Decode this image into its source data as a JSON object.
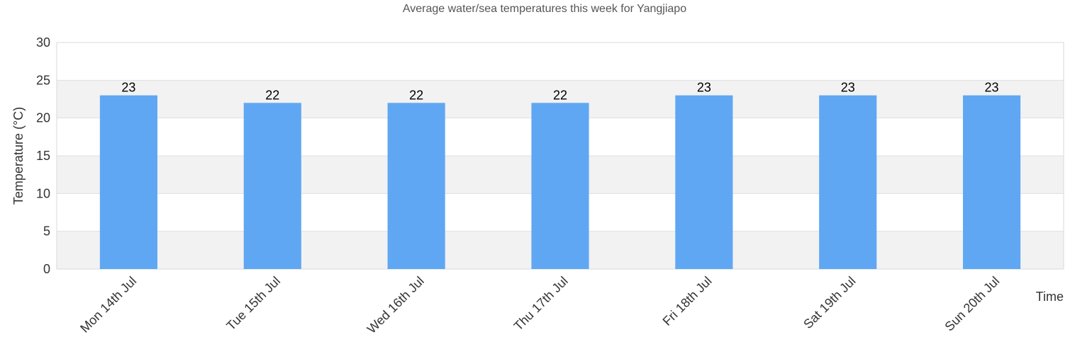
{
  "chart_data": {
    "type": "bar",
    "title": "Average water/sea temperatures this week for Yangjiapo",
    "xlabel": "Time",
    "ylabel": "Temperature (°C)",
    "categories": [
      "Mon 14th Jul",
      "Tue 15th Jul",
      "Wed 16th Jul",
      "Thu 17th Jul",
      "Fri 18th Jul",
      "Sat 19th Jul",
      "Sun 20th Jul"
    ],
    "values": [
      23,
      22,
      22,
      22,
      23,
      23,
      23
    ],
    "ylim": [
      0,
      30
    ],
    "yticks": [
      0,
      5,
      10,
      15,
      20,
      25,
      30
    ],
    "grid": true,
    "bar_color": "#60a7f3",
    "band_color": "#f2f2f2"
  }
}
